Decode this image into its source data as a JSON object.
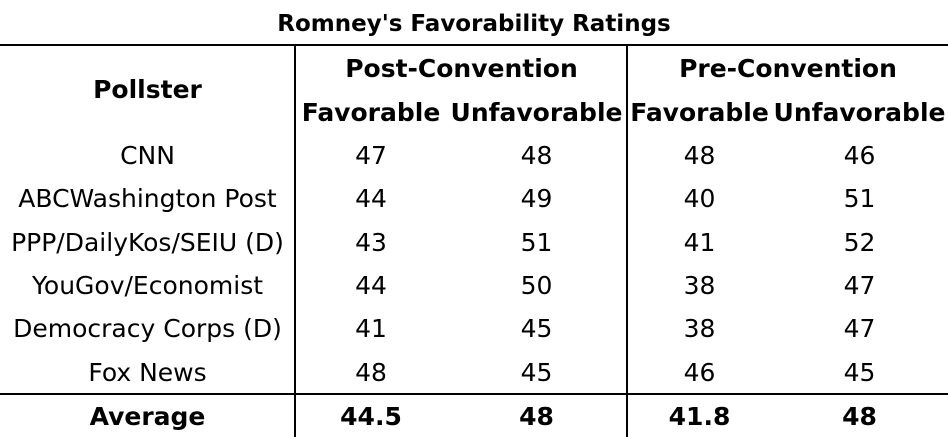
{
  "chart_data": {
    "type": "table",
    "title": "Romney's Favorability Ratings",
    "header": {
      "pollster": "Pollster",
      "groups": [
        "Post-Convention",
        "Pre-Convention"
      ],
      "subcolumns": [
        "Favorable",
        "Unfavorable",
        "Favorable",
        "Unfavorable"
      ]
    },
    "rows": [
      {
        "pollster": "CNN",
        "values": [
          "47",
          "48",
          "48",
          "46"
        ]
      },
      {
        "pollster": "ABCWashington Post",
        "values": [
          "44",
          "49",
          "40",
          "51"
        ]
      },
      {
        "pollster": "PPP/DailyKos/SEIU (D)",
        "values": [
          "43",
          "51",
          "41",
          "52"
        ]
      },
      {
        "pollster": "YouGov/Economist",
        "values": [
          "44",
          "50",
          "38",
          "47"
        ]
      },
      {
        "pollster": "Democracy Corps (D)",
        "values": [
          "41",
          "45",
          "38",
          "47"
        ]
      },
      {
        "pollster": "Fox News",
        "values": [
          "48",
          "45",
          "46",
          "45"
        ]
      }
    ],
    "average": {
      "label": "Average",
      "values": [
        "44.5",
        "48",
        "41.8",
        "48"
      ]
    }
  }
}
